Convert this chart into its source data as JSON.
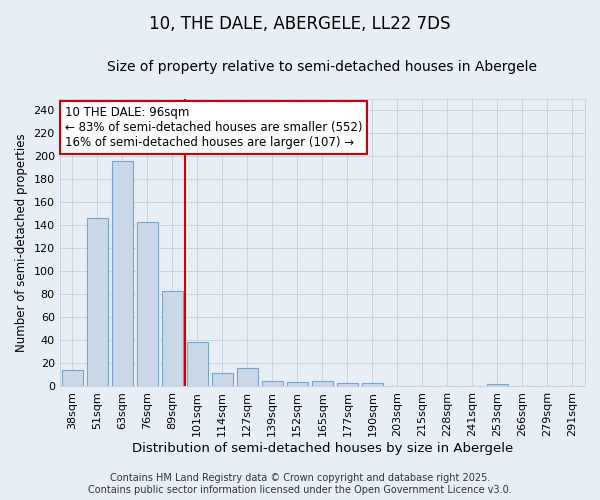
{
  "title": "10, THE DALE, ABERGELE, LL22 7DS",
  "subtitle": "Size of property relative to semi-detached houses in Abergele",
  "xlabel": "Distribution of semi-detached houses by size in Abergele",
  "ylabel": "Number of semi-detached properties",
  "categories": [
    "38sqm",
    "51sqm",
    "63sqm",
    "76sqm",
    "89sqm",
    "101sqm",
    "114sqm",
    "127sqm",
    "139sqm",
    "152sqm",
    "165sqm",
    "177sqm",
    "190sqm",
    "203sqm",
    "215sqm",
    "228sqm",
    "241sqm",
    "253sqm",
    "266sqm",
    "279sqm",
    "291sqm"
  ],
  "values": [
    14,
    146,
    196,
    143,
    83,
    39,
    12,
    16,
    5,
    4,
    5,
    3,
    3,
    0,
    0,
    0,
    0,
    2,
    0,
    0,
    0
  ],
  "bar_color": "#c9d9ea",
  "bar_edge_color": "#7ba3c8",
  "red_line_index": 5,
  "annotation_line1": "10 THE DALE: 96sqm",
  "annotation_line2": "← 83% of semi-detached houses are smaller (552)",
  "annotation_line3": "16% of semi-detached houses are larger (107) →",
  "annotation_box_color": "#ffffff",
  "annotation_box_edge": "#cc0000",
  "red_line_color": "#cc0000",
  "grid_color": "#c5d0de",
  "background_color": "#e8eef5",
  "ylim": [
    0,
    250
  ],
  "yticks": [
    0,
    20,
    40,
    60,
    80,
    100,
    120,
    140,
    160,
    180,
    200,
    220,
    240
  ],
  "footer": "Contains HM Land Registry data © Crown copyright and database right 2025.\nContains public sector information licensed under the Open Government Licence v3.0.",
  "title_fontsize": 12,
  "subtitle_fontsize": 10,
  "xlabel_fontsize": 9.5,
  "ylabel_fontsize": 8.5,
  "tick_fontsize": 8,
  "annotation_fontsize": 8.5,
  "footer_fontsize": 7
}
